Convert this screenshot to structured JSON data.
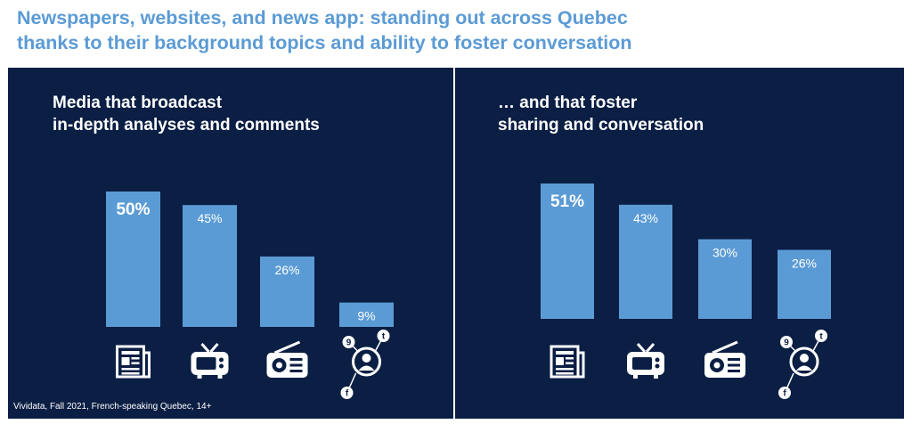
{
  "headline": {
    "line1": "Newspapers, websites, and news app: standing out across Quebec",
    "line2": "thanks to their background topics and ability to foster conversation"
  },
  "colors": {
    "panel_bg": "#0b1e44",
    "bar": "#5b9bd5",
    "headline": "#5b9bd5",
    "text": "#ffffff"
  },
  "source": "Vividata, Fall 2021, French-speaking Quebec, 14+",
  "chart_data": [
    {
      "type": "bar",
      "title_lines": [
        "Media that broadcast",
        "in-depth analyses and comments"
      ],
      "categories": [
        "newspaper-icon",
        "tv-icon",
        "radio-icon",
        "social-media-icon"
      ],
      "values": [
        50,
        45,
        26,
        9
      ],
      "labels": [
        "50%",
        "45%",
        "26%",
        "9%"
      ],
      "highlight_index": 0,
      "unit": "%",
      "ylim": [
        0,
        55
      ],
      "grid": false
    },
    {
      "type": "bar",
      "title_lines": [
        "… and that foster",
        "sharing and conversation"
      ],
      "categories": [
        "newspaper-icon",
        "tv-icon",
        "radio-icon",
        "social-media-icon"
      ],
      "values": [
        51,
        43,
        30,
        26
      ],
      "labels": [
        "51%",
        "43%",
        "30%",
        "26%"
      ],
      "highlight_index": 0,
      "unit": "%",
      "ylim": [
        0,
        55
      ],
      "grid": false
    }
  ]
}
